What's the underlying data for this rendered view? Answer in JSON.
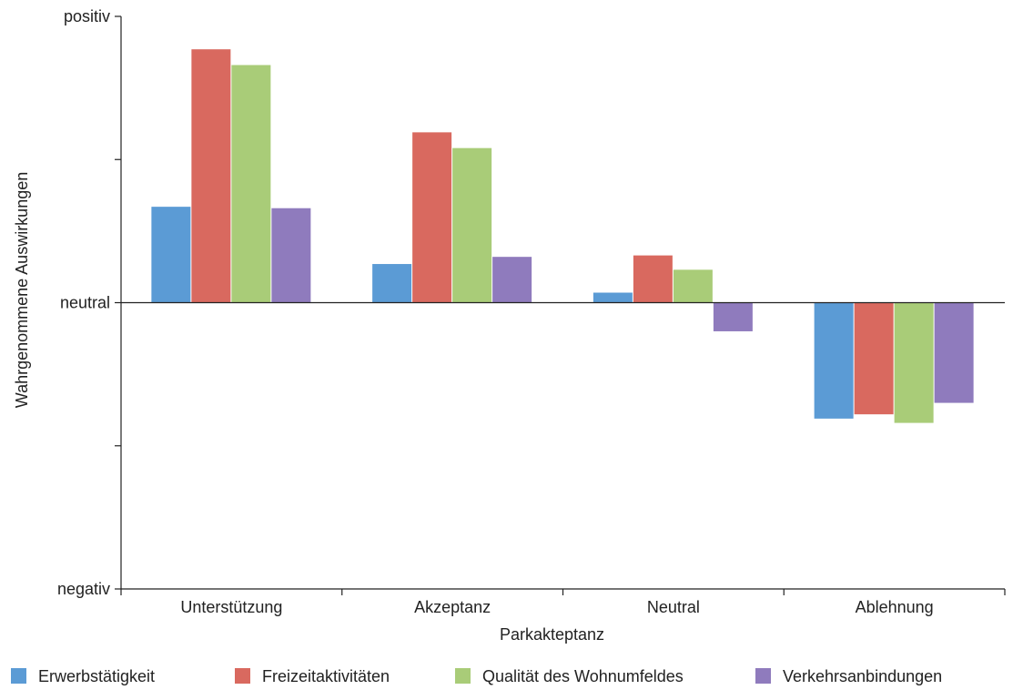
{
  "chart_data": {
    "type": "bar",
    "title": "",
    "xlabel": "Parkakteptanz",
    "ylabel": "Wahrgenommene Auswirkungen",
    "ylim": [
      -1,
      1
    ],
    "y_tick_labels": [
      {
        "value": 1,
        "label": "positiv"
      },
      {
        "value": 0,
        "label": "neutral"
      },
      {
        "value": -1,
        "label": "negativ"
      }
    ],
    "y_minor_ticks": [
      0.5,
      -0.5
    ],
    "grid": false,
    "legend_position": "bottom",
    "categories": [
      "Unterstützung",
      "Akzeptanz",
      "Neutral",
      "Ablehnung"
    ],
    "series": [
      {
        "name": "Erwerbstätigkeit",
        "color": "#5b9bd5",
        "values": [
          0.335,
          0.135,
          0.035,
          -0.405
        ]
      },
      {
        "name": "Freizeitaktivitäten",
        "color": "#d9695f",
        "values": [
          0.885,
          0.595,
          0.165,
          -0.39
        ]
      },
      {
        "name": "Qualität des Wohnumfeldes",
        "color": "#a9cc78",
        "values": [
          0.83,
          0.54,
          0.115,
          -0.42
        ]
      },
      {
        "name": "Verkehrsanbindungen",
        "color": "#8f7bbd",
        "values": [
          0.33,
          0.16,
          -0.1,
          -0.35
        ]
      }
    ]
  }
}
